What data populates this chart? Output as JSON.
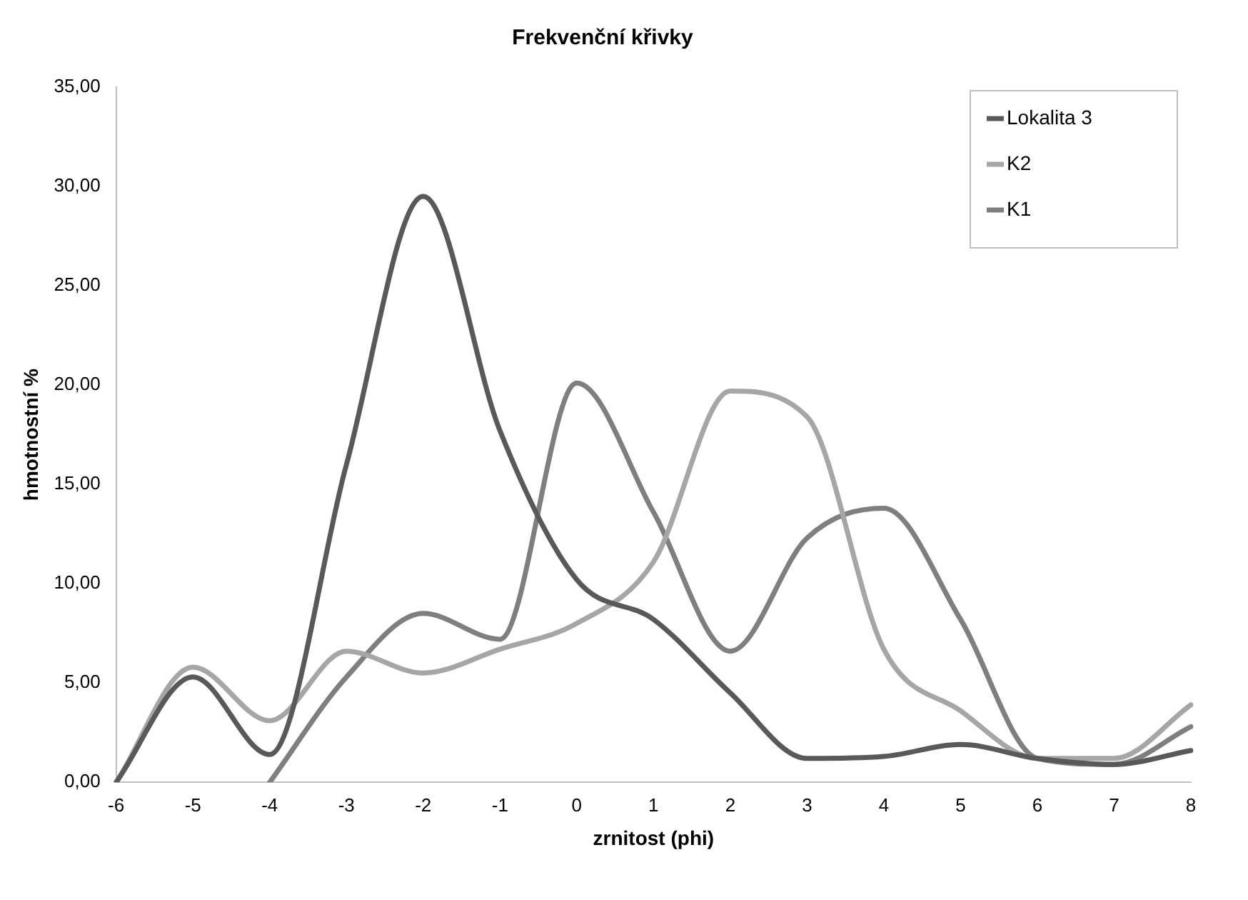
{
  "chart_data": {
    "type": "line",
    "title": "Frekvenční křivky",
    "xlabel": "zrnitost (phi)",
    "ylabel": "hmotnostní %",
    "categories": [
      "-6",
      "-5",
      "-4",
      "-3",
      "-2",
      "-1",
      "0",
      "1",
      "2",
      "3",
      "4",
      "5",
      "6",
      "7",
      "8"
    ],
    "series": [
      {
        "name": "Lokalita 3",
        "color": "#595959",
        "values": [
          0,
          5.3,
          1.4,
          16.0,
          29.5,
          17.7,
          10.2,
          8.2,
          4.5,
          1.2,
          1.3,
          1.9,
          1.2,
          0.9,
          1.6
        ]
      },
      {
        "name": "K2",
        "color": "#a6a6a6",
        "values": [
          0,
          5.8,
          3.1,
          6.6,
          5.5,
          6.7,
          8.0,
          11.1,
          19.7,
          18.4,
          6.7,
          3.6,
          1.2,
          1.2,
          3.9
        ]
      },
      {
        "name": "K1",
        "color": "#7f7f7f",
        "values": [
          null,
          null,
          0,
          5.3,
          8.5,
          7.2,
          20.1,
          13.6,
          6.6,
          12.3,
          13.8,
          8.2,
          1.2,
          0.9,
          2.8
        ]
      }
    ],
    "ylim": [
      0,
      35
    ],
    "yticks": [
      {
        "value": 0,
        "label": "0,00"
      },
      {
        "value": 5,
        "label": "5,00"
      },
      {
        "value": 10,
        "label": "10,00"
      },
      {
        "value": 15,
        "label": "15,00"
      },
      {
        "value": 20,
        "label": "20,00"
      },
      {
        "value": 25,
        "label": "25,00"
      },
      {
        "value": 30,
        "label": "30,00"
      },
      {
        "value": 35,
        "label": "35,00"
      }
    ],
    "grid": false,
    "legend": "top right",
    "marker": "none",
    "line_style": "solid"
  }
}
